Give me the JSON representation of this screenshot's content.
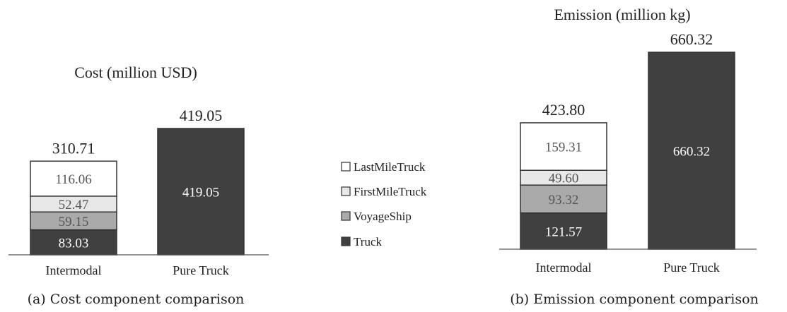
{
  "legend": {
    "items": [
      {
        "name": "LastMileTruck",
        "color": "#ffffff"
      },
      {
        "name": "FirstMileTruck",
        "color": "#e8e8e8"
      },
      {
        "name": "VoyageShip",
        "color": "#aaaaaa"
      },
      {
        "name": "Truck",
        "color": "#404040"
      }
    ]
  },
  "chart_data": [
    {
      "type": "bar",
      "stacked": true,
      "title": "Cost (million USD)",
      "caption": "(a) Cost component comparison",
      "categories": [
        "Intermodal",
        "Pure Truck"
      ],
      "series": [
        {
          "name": "Truck",
          "values": [
            83.03,
            419.05
          ]
        },
        {
          "name": "VoyageShip",
          "values": [
            59.15,
            0
          ]
        },
        {
          "name": "FirstMileTruck",
          "values": [
            52.47,
            0
          ]
        },
        {
          "name": "LastMileTruck",
          "values": [
            116.06,
            0
          ]
        }
      ],
      "totals": [
        "310.71",
        "419.05"
      ],
      "segment_labels": [
        [
          "83.03",
          "59.15",
          "52.47",
          "116.06"
        ],
        [
          "419.05",
          "",
          "",
          ""
        ]
      ],
      "ylim": [
        0,
        419.05
      ],
      "grid": false
    },
    {
      "type": "bar",
      "stacked": true,
      "title": "Emission (million kg)",
      "caption": "(b) Emission component comparison",
      "categories": [
        "Intermodal",
        "Pure Truck"
      ],
      "series": [
        {
          "name": "Truck",
          "values": [
            121.57,
            660.32
          ]
        },
        {
          "name": "VoyageShip",
          "values": [
            93.32,
            0
          ]
        },
        {
          "name": "FirstMileTruck",
          "values": [
            49.6,
            0
          ]
        },
        {
          "name": "LastMileTruck",
          "values": [
            159.31,
            0
          ]
        }
      ],
      "totals": [
        "423.80",
        "660.32"
      ],
      "segment_labels": [
        [
          "121.57",
          "93.32",
          "49.60",
          "159.31"
        ],
        [
          "660.32",
          "",
          "",
          ""
        ]
      ],
      "ylim": [
        0,
        660.32
      ],
      "grid": false
    }
  ]
}
